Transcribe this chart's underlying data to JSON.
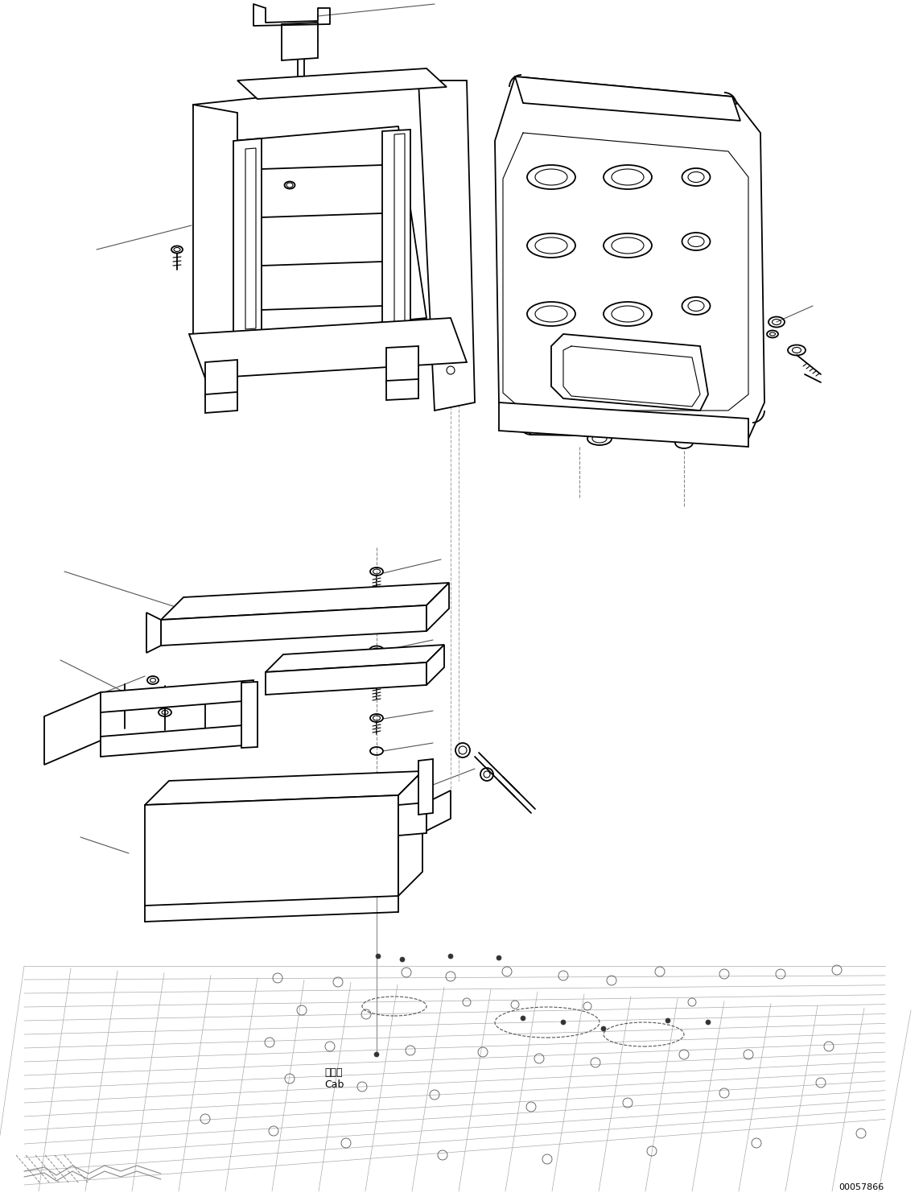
{
  "background_color": "#ffffff",
  "line_color": "#000000",
  "lw": 1.3,
  "tlw": 0.8,
  "watermark_text": "00057866",
  "cab_text": "キャブ\nCab",
  "figure_width": 11.47,
  "figure_height": 14.92,
  "dpi": 100
}
